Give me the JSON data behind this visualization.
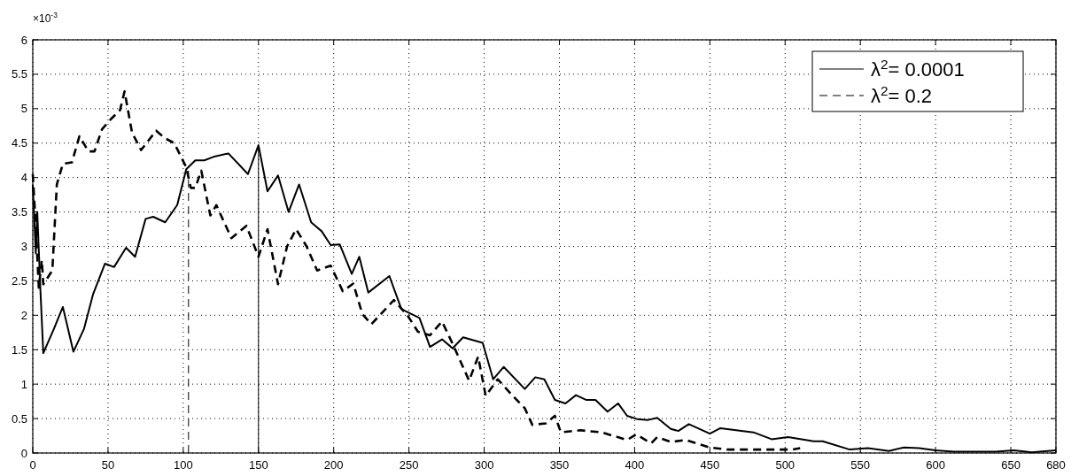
{
  "chart_data": {
    "type": "line",
    "annotations": [
      "×10$^{-3}$"
    ],
    "xlim": [
      0,
      680
    ],
    "xticks": [
      0,
      50,
      100,
      150,
      200,
      250,
      300,
      350,
      400,
      450,
      500,
      550,
      600,
      650,
      680
    ],
    "ylim": [
      0,
      6
    ],
    "yticks": [
      0,
      0.5,
      1,
      1.5,
      2,
      2.5,
      3,
      3.5,
      4,
      4.5,
      5,
      5.5,
      6
    ],
    "grid": true,
    "legend": "top right",
    "series": [
      {
        "name": "λ$^{2}$= 0.0001",
        "color": "#000000",
        "line_style": "solid",
        "x": [
          0,
          2,
          3,
          5,
          7,
          14,
          20,
          27,
          34,
          40,
          48,
          54,
          62,
          68,
          75,
          80,
          88,
          96,
          102,
          108,
          114,
          120,
          130,
          143,
          150,
          156,
          163,
          170,
          177,
          185,
          192,
          198,
          204,
          212,
          217,
          223,
          237,
          245,
          257,
          264,
          272,
          279,
          286,
          299,
          306,
          313,
          327,
          334,
          340,
          347,
          354,
          361,
          368,
          374,
          382,
          389,
          395,
          402,
          409,
          415,
          424,
          429,
          436,
          450,
          457,
          479,
          491,
          502,
          519,
          525,
          543,
          555,
          569,
          579,
          589,
          600,
          612,
          640,
          652,
          664,
          680
        ],
        "values": [
          3.9,
          2.9,
          3.5,
          2.4,
          1.45,
          1.8,
          2.12,
          1.47,
          1.8,
          2.3,
          2.75,
          2.7,
          2.98,
          2.85,
          3.4,
          3.43,
          3.35,
          3.6,
          4.12,
          4.25,
          4.25,
          4.3,
          4.35,
          4.05,
          4.47,
          3.8,
          4.03,
          3.5,
          3.9,
          3.35,
          3.22,
          3.02,
          3.03,
          2.6,
          2.85,
          2.33,
          2.57,
          2.09,
          1.96,
          1.54,
          1.65,
          1.52,
          1.68,
          1.6,
          1.07,
          1.25,
          0.93,
          1.1,
          1.07,
          0.77,
          0.72,
          0.84,
          0.77,
          0.77,
          0.6,
          0.72,
          0.54,
          0.49,
          0.48,
          0.51,
          0.35,
          0.32,
          0.42,
          0.28,
          0.36,
          0.3,
          0.2,
          0.23,
          0.17,
          0.17,
          0.05,
          0.07,
          0.03,
          0.08,
          0.07,
          0.04,
          0.02,
          0.02,
          0.04,
          0.01,
          0.04
        ]
      },
      {
        "name": "λ$^{2}$= 0.2",
        "color": "#000000",
        "line_style": "dashed",
        "x": [
          0,
          2,
          4,
          6,
          7,
          10,
          13,
          16,
          20,
          26,
          31,
          37,
          41,
          46,
          52,
          58,
          61,
          66,
          72,
          82,
          88,
          94,
          102,
          105,
          108,
          112,
          118,
          122,
          132,
          142,
          150,
          156,
          163,
          169,
          175,
          182,
          189,
          198,
          206,
          213,
          219,
          225,
          240,
          249,
          256,
          264,
          272,
          280,
          290,
          296,
          301,
          309,
          319,
          327,
          332,
          341,
          347,
          351,
          364,
          378,
          395,
          401,
          411,
          415,
          424,
          434,
          450,
          462,
          480,
          505,
          510
        ],
        "values": [
          4.05,
          3.3,
          2.4,
          2.8,
          2.45,
          2.55,
          2.65,
          3.9,
          4.2,
          4.22,
          4.6,
          4.38,
          4.38,
          4.7,
          4.85,
          4.98,
          5.25,
          4.65,
          4.4,
          4.68,
          4.57,
          4.5,
          4.15,
          3.85,
          3.85,
          4.1,
          3.45,
          3.6,
          3.12,
          3.3,
          2.85,
          3.25,
          2.45,
          3.0,
          3.25,
          3.0,
          2.65,
          2.72,
          2.35,
          2.46,
          2.02,
          1.87,
          2.22,
          2.0,
          1.76,
          1.71,
          1.91,
          1.54,
          1.05,
          1.4,
          0.83,
          1.07,
          0.83,
          0.65,
          0.41,
          0.43,
          0.54,
          0.3,
          0.33,
          0.3,
          0.19,
          0.27,
          0.14,
          0.23,
          0.16,
          0.19,
          0.08,
          0.05,
          0.05,
          0.05,
          0.07
        ]
      },
      {
        "color": "#000000",
        "line_style": "dashed",
        "x": [
          103.5,
          103.5
        ],
        "values": [
          0,
          4.1
        ]
      },
      {
        "color": "#000000",
        "line_style": "solid",
        "x": [
          150,
          150
        ],
        "values": [
          0,
          4.47
        ]
      }
    ]
  }
}
